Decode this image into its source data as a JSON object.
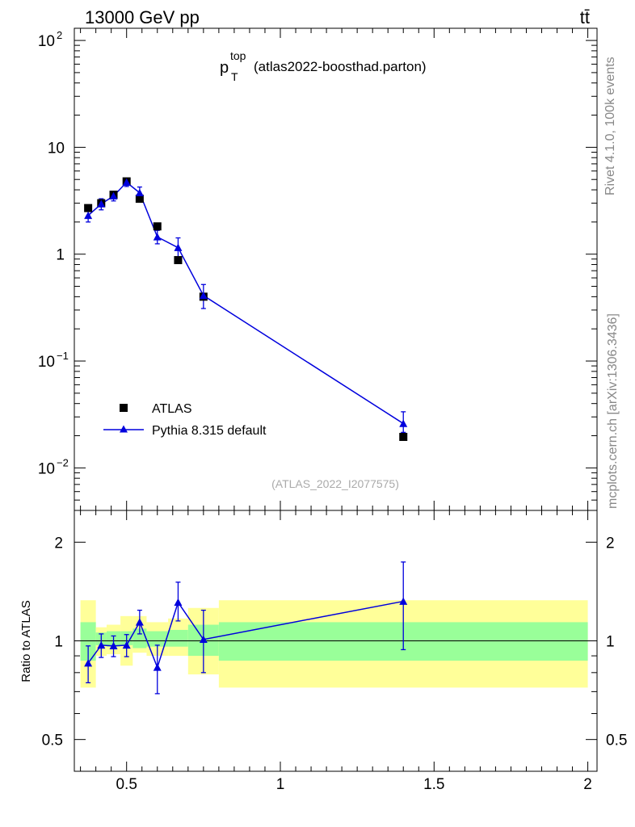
{
  "header": {
    "left": "13000 GeV pp",
    "right": "tt̄"
  },
  "title": {
    "main": "p",
    "sup": "top",
    "sub": "T",
    "analysis": "(atlas2022-boosthad.parton)"
  },
  "watermark": "(ATLAS_2022_I2077575)",
  "side_text": {
    "rivet": "Rivet 4.1.0,  100k events",
    "site": "mcplots.cern.ch [arXiv:1306.3436]"
  },
  "legend": {
    "data_label": "ATLAS",
    "mc_label": "Pythia 8.315 default"
  },
  "colors": {
    "mc": "#0000dd",
    "data": "#000000",
    "band_inner": "#99ff99",
    "band_outer": "#ffff99"
  },
  "chart_data": [
    {
      "type": "scatter",
      "role": "main",
      "yscale": "log",
      "ylim": [
        0.004,
        130
      ],
      "xlim": [
        0.33,
        2.03
      ],
      "y_ticks": [
        {
          "value": 0.01,
          "base": "10",
          "exp": "−2"
        },
        {
          "value": 0.1,
          "base": "10",
          "exp": "−1"
        },
        {
          "value": 1,
          "base": "1",
          "exp": ""
        },
        {
          "value": 10,
          "base": "10",
          "exp": ""
        },
        {
          "value": 100,
          "base": "10",
          "exp": "2"
        }
      ],
      "series": [
        {
          "name": "ATLAS",
          "marker": "square",
          "x": [
            0.375,
            0.4175,
            0.4575,
            0.5,
            0.5425,
            0.6,
            0.6675,
            0.75,
            1.4
          ],
          "y": [
            2.7,
            3.0,
            3.6,
            4.8,
            3.3,
            1.82,
            0.88,
            0.4,
            0.0195
          ]
        },
        {
          "name": "Pythia 8.315 default",
          "marker": "triangle",
          "x": [
            0.375,
            0.4175,
            0.4575,
            0.5,
            0.5425,
            0.6,
            0.6675,
            0.75,
            1.4
          ],
          "y": [
            2.3,
            2.95,
            3.5,
            4.7,
            3.75,
            1.45,
            1.15,
            0.41,
            0.026
          ],
          "yerr_low": [
            0.3,
            0.35,
            0.35,
            0.4,
            0.45,
            0.2,
            0.25,
            0.1,
            0.0045
          ],
          "yerr_high": [
            0.3,
            0.35,
            0.35,
            0.4,
            0.5,
            0.22,
            0.27,
            0.11,
            0.0075
          ]
        }
      ]
    },
    {
      "type": "line",
      "role": "ratio",
      "ylabel": "Ratio to ATLAS",
      "yscale": "log",
      "ylim": [
        0.4,
        2.5
      ],
      "xlim": [
        0.33,
        2.03
      ],
      "y_ticks": [
        0.5,
        1,
        2
      ],
      "x_ticks": [
        0.5,
        1,
        1.5,
        2
      ],
      "x_tick_labels": [
        "0.5",
        "1",
        "1.5",
        "2"
      ],
      "bands": {
        "edges": [
          0.35,
          0.4,
          0.435,
          0.48,
          0.52,
          0.565,
          0.635,
          0.7,
          0.8,
          2.0
        ],
        "inner_low": [
          0.87,
          0.97,
          0.96,
          0.97,
          0.95,
          0.96,
          0.96,
          0.9,
          0.87
        ],
        "inner_high": [
          1.14,
          1.06,
          1.07,
          1.07,
          1.09,
          1.07,
          1.08,
          1.12,
          1.14
        ],
        "outer_low": [
          0.72,
          0.9,
          0.91,
          0.84,
          0.92,
          0.9,
          0.9,
          0.79,
          0.72
        ],
        "outer_high": [
          1.33,
          1.1,
          1.12,
          1.19,
          1.19,
          1.14,
          1.17,
          1.26,
          1.33
        ]
      },
      "series": [
        {
          "name": "Pythia 8.315 default",
          "x": [
            0.375,
            0.4175,
            0.4575,
            0.5,
            0.5425,
            0.6,
            0.6675,
            0.75,
            1.4
          ],
          "y": [
            0.855,
            0.97,
            0.965,
            0.97,
            1.14,
            0.83,
            1.31,
            1.01,
            1.32
          ],
          "yerr_low": [
            0.11,
            0.08,
            0.07,
            0.075,
            0.09,
            0.14,
            0.16,
            0.21,
            0.38
          ],
          "yerr_high": [
            0.11,
            0.08,
            0.07,
            0.075,
            0.1,
            0.14,
            0.2,
            0.23,
            0.42
          ]
        }
      ]
    }
  ]
}
